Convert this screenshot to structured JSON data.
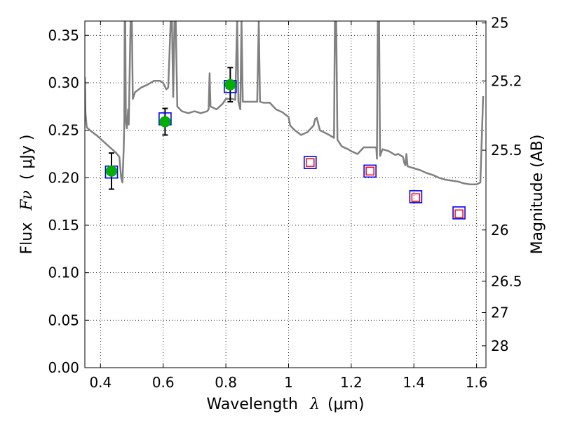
{
  "chart_data": {
    "type": "scatter",
    "xlabel_prefix": "Wavelength",
    "xlabel_symbol": "λ",
    "xlabel_units": "(μm)",
    "ylabel_prefix": "Flux",
    "ylabel_symbol": "Fν",
    "ylabel_units": "( μJy )",
    "y2label": "Magnitude (AB)",
    "xlim": [
      0.35,
      1.63
    ],
    "ylim": [
      0.0,
      0.365
    ],
    "xticks": [
      0.4,
      0.6,
      0.8,
      1.0,
      1.2,
      1.4,
      1.6
    ],
    "xtick_labels": [
      "0.4",
      "0.6",
      "0.8",
      "1",
      "1.2",
      "1.4",
      "1.6"
    ],
    "yticks": [
      0.0,
      0.05,
      0.1,
      0.15,
      0.2,
      0.25,
      0.3,
      0.35
    ],
    "ytick_labels": [
      "0.00",
      "0.05",
      "0.10",
      "0.15",
      "0.20",
      "0.25",
      "0.30",
      "0.35"
    ],
    "y2ticks": [
      {
        "label": "25",
        "flux": 0.363
      },
      {
        "label": "25.2",
        "flux": 0.302
      },
      {
        "label": "25.5",
        "flux": 0.229
      },
      {
        "label": "26",
        "flux": 0.145
      },
      {
        "label": "26.5",
        "flux": 0.091
      },
      {
        "label": "27",
        "flux": 0.058
      },
      {
        "label": "28",
        "flux": 0.023
      }
    ],
    "grid": true,
    "colors": {
      "model": "#808080",
      "observed": "#00b000",
      "synthetic_box": "#0000ff",
      "predicted": "#ff0000",
      "errorbar": "#000000"
    },
    "observed_points": [
      {
        "x": 0.435,
        "y": 0.207,
        "err": 0.019
      },
      {
        "x": 0.606,
        "y": 0.259,
        "err": 0.014
      },
      {
        "x": 0.814,
        "y": 0.298,
        "err": 0.018
      }
    ],
    "synthetic_photometry": [
      {
        "x": 0.435,
        "y": 0.206
      },
      {
        "x": 0.606,
        "y": 0.262
      },
      {
        "x": 0.814,
        "y": 0.296
      },
      {
        "x": 1.069,
        "y": 0.216
      },
      {
        "x": 1.26,
        "y": 0.207
      },
      {
        "x": 1.406,
        "y": 0.18
      },
      {
        "x": 1.544,
        "y": 0.163
      }
    ],
    "predicted_points": [
      {
        "x": 1.069,
        "y": 0.216
      },
      {
        "x": 1.26,
        "y": 0.207
      },
      {
        "x": 1.406,
        "y": 0.179
      },
      {
        "x": 1.544,
        "y": 0.162
      }
    ],
    "model_spectrum": [
      [
        0.35,
        0.306
      ],
      [
        0.352,
        0.268
      ],
      [
        0.356,
        0.253
      ],
      [
        0.37,
        0.249
      ],
      [
        0.39,
        0.244
      ],
      [
        0.41,
        0.238
      ],
      [
        0.43,
        0.232
      ],
      [
        0.45,
        0.226
      ],
      [
        0.46,
        0.222
      ],
      [
        0.466,
        0.2
      ],
      [
        0.47,
        0.195
      ],
      [
        0.474,
        0.23
      ],
      [
        0.476,
        0.26
      ],
      [
        0.477,
        0.365
      ],
      [
        0.479,
        0.365
      ],
      [
        0.481,
        0.26
      ],
      [
        0.484,
        0.252
      ],
      [
        0.488,
        0.272
      ],
      [
        0.49,
        0.256
      ],
      [
        0.496,
        0.365
      ],
      [
        0.5,
        0.365
      ],
      [
        0.503,
        0.283
      ],
      [
        0.51,
        0.29
      ],
      [
        0.53,
        0.295
      ],
      [
        0.55,
        0.298
      ],
      [
        0.57,
        0.302
      ],
      [
        0.59,
        0.302
      ],
      [
        0.6,
        0.3
      ],
      [
        0.61,
        0.293
      ],
      [
        0.616,
        0.295
      ],
      [
        0.624,
        0.365
      ],
      [
        0.628,
        0.365
      ],
      [
        0.632,
        0.285
      ],
      [
        0.636,
        0.365
      ],
      [
        0.64,
        0.365
      ],
      [
        0.645,
        0.275
      ],
      [
        0.66,
        0.27
      ],
      [
        0.68,
        0.268
      ],
      [
        0.7,
        0.27
      ],
      [
        0.72,
        0.268
      ],
      [
        0.74,
        0.27
      ],
      [
        0.745,
        0.272
      ],
      [
        0.748,
        0.31
      ],
      [
        0.751,
        0.275
      ],
      [
        0.77,
        0.272
      ],
      [
        0.79,
        0.278
      ],
      [
        0.8,
        0.283
      ],
      [
        0.82,
        0.283
      ],
      [
        0.83,
        0.282
      ],
      [
        0.836,
        0.365
      ],
      [
        0.84,
        0.28
      ],
      [
        0.846,
        0.272
      ],
      [
        0.85,
        0.365
      ],
      [
        0.854,
        0.28
      ],
      [
        0.86,
        0.28
      ],
      [
        0.88,
        0.28
      ],
      [
        0.9,
        0.28
      ],
      [
        0.905,
        0.365
      ],
      [
        0.909,
        0.28
      ],
      [
        0.92,
        0.279
      ],
      [
        0.94,
        0.279
      ],
      [
        0.96,
        0.272
      ],
      [
        0.98,
        0.269
      ],
      [
        1.0,
        0.264
      ],
      [
        1.005,
        0.255
      ],
      [
        1.02,
        0.25
      ],
      [
        1.04,
        0.245
      ],
      [
        1.06,
        0.248
      ],
      [
        1.08,
        0.255
      ],
      [
        1.085,
        0.262
      ],
      [
        1.09,
        0.263
      ],
      [
        1.1,
        0.25
      ],
      [
        1.13,
        0.245
      ],
      [
        1.145,
        0.242
      ],
      [
        1.148,
        0.365
      ],
      [
        1.152,
        0.365
      ],
      [
        1.156,
        0.24
      ],
      [
        1.17,
        0.233
      ],
      [
        1.19,
        0.23
      ],
      [
        1.2,
        0.228
      ],
      [
        1.22,
        0.225
      ],
      [
        1.24,
        0.232
      ],
      [
        1.26,
        0.232
      ],
      [
        1.275,
        0.232
      ],
      [
        1.28,
        0.232
      ],
      [
        1.282,
        0.22
      ],
      [
        1.285,
        0.365
      ],
      [
        1.289,
        0.365
      ],
      [
        1.292,
        0.223
      ],
      [
        1.3,
        0.23
      ],
      [
        1.32,
        0.228
      ],
      [
        1.34,
        0.224
      ],
      [
        1.35,
        0.225
      ],
      [
        1.365,
        0.222
      ],
      [
        1.37,
        0.215
      ],
      [
        1.373,
        0.213
      ],
      [
        1.376,
        0.225
      ],
      [
        1.38,
        0.212
      ],
      [
        1.39,
        0.211
      ],
      [
        1.4,
        0.21
      ],
      [
        1.42,
        0.208
      ],
      [
        1.44,
        0.205
      ],
      [
        1.46,
        0.203
      ],
      [
        1.48,
        0.2
      ],
      [
        1.5,
        0.198
      ],
      [
        1.52,
        0.197
      ],
      [
        1.54,
        0.196
      ],
      [
        1.56,
        0.194
      ],
      [
        1.58,
        0.193
      ],
      [
        1.6,
        0.193
      ],
      [
        1.612,
        0.195
      ],
      [
        1.617,
        0.245
      ],
      [
        1.621,
        0.286
      ]
    ]
  }
}
